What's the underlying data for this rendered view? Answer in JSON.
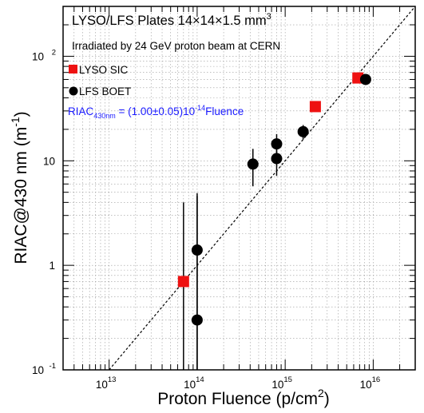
{
  "chart_data": {
    "type": "scatter",
    "title_line1": "LYSO/LFS Plates 14×14×1.5 mm",
    "title_sup": "3",
    "subtitle": "Irradiated by 24 GeV proton beam at CERN",
    "xlabel_main": "Proton Fluence (p/cm",
    "xlabel_sup": "2",
    "xlabel_end": ")",
    "ylabel_main": "RIAC@430 nm (m",
    "ylabel_sup": "-1",
    "ylabel_end": ")",
    "x_scale": "log",
    "y_scale": "log",
    "xlim": [
      3000000000000.0,
      3e+16
    ],
    "ylim": [
      0.1,
      300
    ],
    "grid": true,
    "legend_position": "top-left",
    "x_ticks": [
      {
        "value": 10000000000000.0,
        "base": "10",
        "exp": "13"
      },
      {
        "value": 100000000000000.0,
        "base": "10",
        "exp": "14"
      },
      {
        "value": 1000000000000000.0,
        "base": "10",
        "exp": "15"
      },
      {
        "value": 1e+16,
        "base": "10",
        "exp": "16"
      }
    ],
    "y_ticks": [
      {
        "value": 0.1,
        "base": "10",
        "exp": "-1"
      },
      {
        "value": 1,
        "base": "1",
        "exp": ""
      },
      {
        "value": 10,
        "base": "10",
        "exp": ""
      },
      {
        "value": 100,
        "base": "10",
        "exp": "2"
      }
    ],
    "fit": {
      "label_main": "RIAC",
      "label_sub": "430nm",
      "label_mid": " = (1.00±0.05)10",
      "label_sup": "-14",
      "label_end": "Fluence",
      "color": "#1a1aff",
      "coefficient": 1e-14
    },
    "series": [
      {
        "name": "LYSO SIC",
        "marker": "square",
        "color": "#ee1111",
        "points": [
          {
            "x": 70000000000000.0,
            "y": 0.7,
            "ylo": 0.1,
            "yhi": 4.0
          },
          {
            "x": 2200000000000000.0,
            "y": 33
          },
          {
            "x": 6700000000000000.0,
            "y": 62
          }
        ]
      },
      {
        "name": "LFS BOET",
        "marker": "circle",
        "color": "#000000",
        "points": [
          {
            "x": 100000000000000.0,
            "y": 0.3,
            "ylo": 0.1,
            "yhi": 4.6
          },
          {
            "x": 100000000000000.0,
            "y": 1.4,
            "ylo": 0.1,
            "yhi": 4.9
          },
          {
            "x": 430000000000000.0,
            "y": 9.3,
            "ylo": 5.7,
            "yhi": 13
          },
          {
            "x": 800000000000000.0,
            "y": 10.5,
            "ylo": 7.2,
            "yhi": 14
          },
          {
            "x": 800000000000000.0,
            "y": 14.5,
            "ylo": 11,
            "yhi": 18
          },
          {
            "x": 1600000000000000.0,
            "y": 19,
            "ylo": 16,
            "yhi": 22
          },
          {
            "x": 8200000000000000.0,
            "y": 60
          }
        ]
      }
    ]
  }
}
